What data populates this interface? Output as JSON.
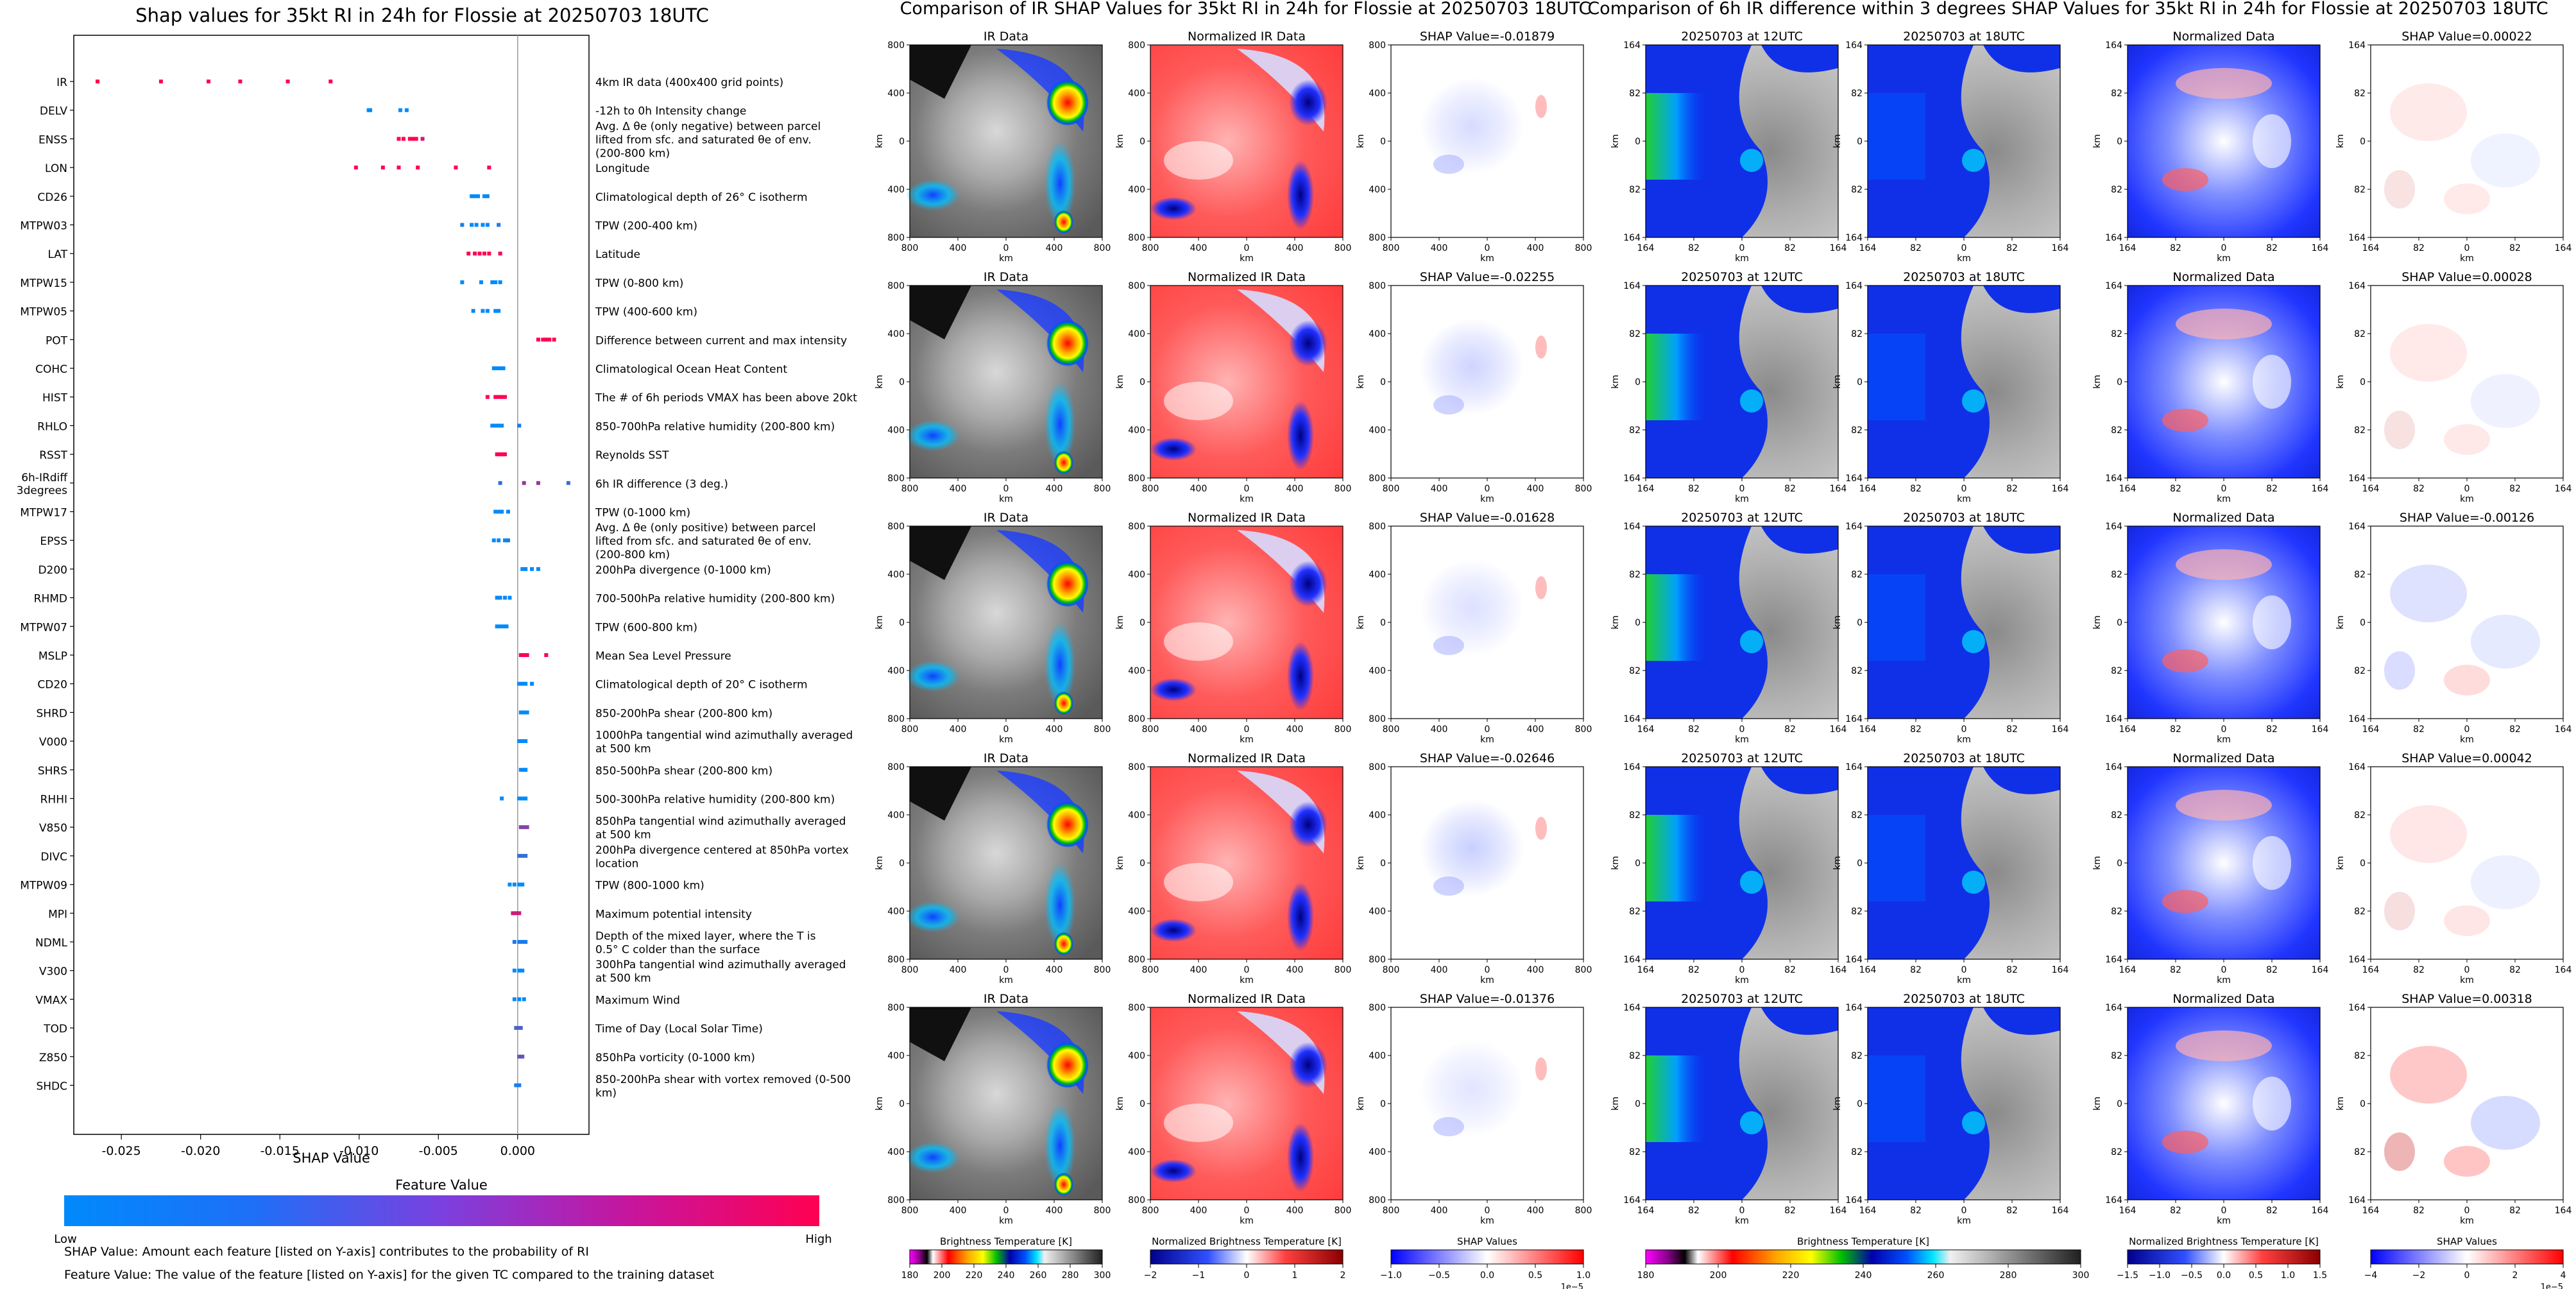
{
  "colors": {
    "low": "#008afb",
    "high": "#ff0052",
    "axis": "#000000",
    "zero_line": "#999999"
  },
  "beeswarm": {
    "title": "Shap values for 35kt RI in 24h for Flossie at 20250703 18UTC",
    "xlabel": "SHAP Value",
    "xlim": [
      -0.028,
      0.0045
    ],
    "xticks": [
      "-0.025",
      "-0.020",
      "-0.015",
      "-0.010",
      "-0.005",
      "0.000"
    ],
    "xtick_values": [
      -0.025,
      -0.02,
      -0.015,
      -0.01,
      -0.005,
      0.0
    ],
    "features": [
      {
        "name": "IR",
        "desc": "4km IR data (400x400 grid points)",
        "pts": [
          [
            -0.0265,
            1
          ],
          [
            -0.0225,
            1
          ],
          [
            -0.0195,
            1
          ],
          [
            -0.0175,
            1
          ],
          [
            -0.0145,
            1
          ],
          [
            -0.0118,
            1
          ]
        ]
      },
      {
        "name": "DELV",
        "desc": "-12h to 0h Intensity change",
        "pts": [
          [
            -0.0094,
            0
          ],
          [
            -0.0093,
            0
          ],
          [
            -0.0074,
            0
          ],
          [
            -0.007,
            0
          ]
        ]
      },
      {
        "name": "ENSS",
        "desc": "Avg. Δ θe (only negative) between parcel lifted from sfc. and saturated θe of env. (200-800 km)",
        "pts": [
          [
            -0.0075,
            1
          ],
          [
            -0.0072,
            1
          ],
          [
            -0.0068,
            1
          ],
          [
            -0.0066,
            1
          ],
          [
            -0.0064,
            1
          ],
          [
            -0.006,
            0.8
          ]
        ]
      },
      {
        "name": "LON",
        "desc": "Longitude",
        "pts": [
          [
            -0.0102,
            1
          ],
          [
            -0.0085,
            1
          ],
          [
            -0.0075,
            1
          ],
          [
            -0.0063,
            1
          ],
          [
            -0.0039,
            1
          ],
          [
            -0.0018,
            1
          ]
        ]
      },
      {
        "name": "CD26",
        "desc": "Climatological depth of 26° C isotherm",
        "pts": [
          [
            -0.0029,
            0
          ],
          [
            -0.0027,
            0
          ],
          [
            -0.0025,
            0
          ],
          [
            -0.0021,
            0
          ],
          [
            -0.0019,
            0
          ]
        ]
      },
      {
        "name": "MTPW03",
        "desc": "TPW (200-400 km)",
        "pts": [
          [
            -0.0035,
            0.1
          ],
          [
            -0.0029,
            0
          ],
          [
            -0.0026,
            0
          ],
          [
            -0.0022,
            0
          ],
          [
            -0.0019,
            0
          ],
          [
            -0.0012,
            0.1
          ]
        ]
      },
      {
        "name": "LAT",
        "desc": "Latitude",
        "pts": [
          [
            -0.0031,
            1
          ],
          [
            -0.0027,
            1
          ],
          [
            -0.0024,
            1
          ],
          [
            -0.0021,
            1
          ],
          [
            -0.0018,
            1
          ],
          [
            -0.0011,
            1
          ]
        ]
      },
      {
        "name": "MTPW15",
        "desc": "TPW (0-800 km)",
        "pts": [
          [
            -0.0035,
            0
          ],
          [
            -0.0023,
            0
          ],
          [
            -0.0016,
            0
          ],
          [
            -0.0014,
            0
          ],
          [
            -0.0011,
            0
          ]
        ]
      },
      {
        "name": "MTPW05",
        "desc": "TPW (400-600 km)",
        "pts": [
          [
            -0.0028,
            0.05
          ],
          [
            -0.0022,
            0
          ],
          [
            -0.0019,
            0
          ],
          [
            -0.0014,
            0
          ],
          [
            -0.0012,
            0
          ]
        ]
      },
      {
        "name": "POT",
        "desc": "Difference between current and max intensity",
        "pts": [
          [
            0.0013,
            1
          ],
          [
            0.0016,
            1
          ],
          [
            0.0018,
            1
          ],
          [
            0.002,
            1
          ],
          [
            0.0023,
            1
          ]
        ]
      },
      {
        "name": "COHC",
        "desc": "Climatological Ocean Heat Content",
        "pts": [
          [
            -0.0015,
            0
          ],
          [
            -0.0013,
            0
          ],
          [
            -0.0011,
            0
          ],
          [
            -0.0009,
            0
          ]
        ]
      },
      {
        "name": "HIST",
        "desc": "The # of 6h periods VMAX has been above 20kt",
        "pts": [
          [
            -0.0019,
            1
          ],
          [
            -0.0014,
            1
          ],
          [
            -0.0012,
            1
          ],
          [
            -0.001,
            1
          ],
          [
            -0.0008,
            1
          ]
        ]
      },
      {
        "name": "RHLO",
        "desc": "850-700hPa relative humidity (200-800 km)",
        "pts": [
          [
            -0.0016,
            0
          ],
          [
            -0.0014,
            0
          ],
          [
            -0.0012,
            0
          ],
          [
            -0.001,
            0
          ],
          [
            0.0001,
            0.1
          ]
        ]
      },
      {
        "name": "RSST",
        "desc": "Reynolds SST",
        "pts": [
          [
            -0.0013,
            1
          ],
          [
            -0.0011,
            1
          ],
          [
            -0.001,
            1
          ],
          [
            -0.0009,
            1
          ],
          [
            -0.0008,
            1
          ]
        ]
      },
      {
        "name": "6h-IRdiff\n3degrees",
        "desc": "6h IR difference (3 deg.)",
        "pts": [
          [
            -0.0011,
            0.2
          ],
          [
            0.0004,
            0.6
          ],
          [
            0.0013,
            0.6
          ],
          [
            0.0032,
            0.2
          ]
        ]
      },
      {
        "name": "MTPW17",
        "desc": "TPW (0-1000 km)",
        "pts": [
          [
            -0.0014,
            0
          ],
          [
            -0.0012,
            0
          ],
          [
            -0.001,
            0
          ],
          [
            -0.0006,
            0
          ]
        ]
      },
      {
        "name": "EPSS",
        "desc": "Avg. Δ θe (only positive) between parcel lifted from sfc. and saturated θe of env. (200-800 km)",
        "pts": [
          [
            -0.0015,
            0
          ],
          [
            -0.0012,
            0
          ],
          [
            -0.0008,
            0
          ],
          [
            -0.0006,
            0.1
          ]
        ]
      },
      {
        "name": "D200",
        "desc": "200hPa divergence (0-1000 km)",
        "pts": [
          [
            0.0003,
            0
          ],
          [
            0.0005,
            0
          ],
          [
            0.0009,
            0
          ],
          [
            0.0013,
            0
          ]
        ]
      },
      {
        "name": "RHMD",
        "desc": "700-500hPa relative humidity (200-800 km)",
        "pts": [
          [
            -0.0013,
            0
          ],
          [
            -0.0011,
            0
          ],
          [
            -0.0008,
            0
          ],
          [
            -0.0005,
            0
          ]
        ]
      },
      {
        "name": "MTPW07",
        "desc": "TPW (600-800 km)",
        "pts": [
          [
            -0.0013,
            0
          ],
          [
            -0.0011,
            0
          ],
          [
            -0.0009,
            0
          ],
          [
            -0.0007,
            0
          ]
        ]
      },
      {
        "name": "MSLP",
        "desc": "Mean Sea Level Pressure",
        "pts": [
          [
            0.0002,
            1
          ],
          [
            0.0004,
            1
          ],
          [
            0.0006,
            1
          ],
          [
            0.0018,
            1
          ]
        ]
      },
      {
        "name": "CD20",
        "desc": "Climatological depth of 20° C isotherm",
        "pts": [
          [
            0.0001,
            0
          ],
          [
            0.0003,
            0
          ],
          [
            0.0005,
            0
          ],
          [
            0.0009,
            0
          ]
        ]
      },
      {
        "name": "SHRD",
        "desc": "850-200hPa shear (200-800 km)",
        "pts": [
          [
            0.0002,
            0
          ],
          [
            0.0004,
            0
          ],
          [
            0.0006,
            0
          ]
        ]
      },
      {
        "name": "V000",
        "desc": "1000hPa tangential wind azimuthally averaged at 500 km",
        "pts": [
          [
            0.0001,
            0
          ],
          [
            0.0003,
            0
          ],
          [
            0.0005,
            0
          ]
        ]
      },
      {
        "name": "SHRS",
        "desc": "850-500hPa shear (200-800 km)",
        "pts": [
          [
            0.0002,
            0
          ],
          [
            0.0004,
            0
          ],
          [
            0.0005,
            0
          ]
        ]
      },
      {
        "name": "RHHI",
        "desc": "500-300hPa relative humidity (200-800 km)",
        "pts": [
          [
            -0.001,
            0
          ],
          [
            0.0001,
            0
          ],
          [
            0.0003,
            0
          ],
          [
            0.0005,
            0
          ]
        ]
      },
      {
        "name": "V850",
        "desc": "850hPa tangential wind azimuthally averaged at 500 km",
        "pts": [
          [
            0.0002,
            0.5
          ],
          [
            0.0004,
            0.5
          ],
          [
            0.0006,
            0.5
          ]
        ]
      },
      {
        "name": "DIVC",
        "desc": "200hPa divergence centered at 850hPa vortex location",
        "pts": [
          [
            0.0001,
            0.2
          ],
          [
            0.0003,
            0.2
          ],
          [
            0.0005,
            0.2
          ]
        ]
      },
      {
        "name": "MTPW09",
        "desc": "TPW (800-1000 km)",
        "pts": [
          [
            -0.0005,
            0
          ],
          [
            -0.0002,
            0
          ],
          [
            0.0001,
            0
          ],
          [
            0.0003,
            0
          ]
        ]
      },
      {
        "name": "MPI",
        "desc": "Maximum potential intensity",
        "pts": [
          [
            -0.0003,
            0.8
          ],
          [
            -0.0001,
            0.8
          ],
          [
            0.0001,
            0.8
          ]
        ]
      },
      {
        "name": "NDML",
        "desc": "Depth of the mixed layer, where the T is 0.5° C colder than the surface",
        "pts": [
          [
            -0.0002,
            0.1
          ],
          [
            0.0001,
            0.1
          ],
          [
            0.0003,
            0.1
          ],
          [
            0.0005,
            0.1
          ]
        ]
      },
      {
        "name": "V300",
        "desc": "300hPa tangential wind azimuthally averaged at 500 km",
        "pts": [
          [
            -0.0002,
            0
          ],
          [
            0.0001,
            0
          ],
          [
            0.0003,
            0
          ]
        ]
      },
      {
        "name": "VMAX",
        "desc": "Maximum Wind",
        "pts": [
          [
            -0.0002,
            0
          ],
          [
            0.0001,
            0
          ],
          [
            0.0004,
            0
          ]
        ]
      },
      {
        "name": "TOD",
        "desc": "Time of Day (Local Solar Time)",
        "pts": [
          [
            -0.0001,
            0.3
          ],
          [
            0.0001,
            0.3
          ],
          [
            0.0002,
            0.3
          ]
        ]
      },
      {
        "name": "Z850",
        "desc": "850hPa vorticity (0-1000 km)",
        "pts": [
          [
            0.0001,
            0.4
          ],
          [
            0.0003,
            0.4
          ]
        ]
      },
      {
        "name": "SHDC",
        "desc": "850-200hPa shear with vortex removed (0-500 km)",
        "pts": [
          [
            -0.0001,
            0.1
          ],
          [
            0.0001,
            0.1
          ]
        ]
      }
    ],
    "colorbar_title": "Feature Value",
    "colorbar_low": "Low",
    "colorbar_high": "High",
    "note1": "SHAP Value: Amount each feature [listed on Y-axis] contributes to the probability of RI",
    "note2": "Feature Value: The value of the feature [listed on Y-axis] for the given TC compared to the training dataset"
  },
  "panel_set1": {
    "title": "Comparison of IR SHAP Values for 35kt RI in 24h for Flossie at 20250703 18UTC",
    "col_titles": [
      "IR Data",
      "Normalized IR Data"
    ],
    "shap_titles": [
      "SHAP Value=-0.01879",
      "SHAP Value=-0.02255",
      "SHAP Value=-0.01628",
      "SHAP Value=-0.02646",
      "SHAP Value=-0.01376"
    ],
    "xticks": [
      "800",
      "400",
      "0",
      "400",
      "800"
    ],
    "yticks": [
      "800",
      "400",
      "0",
      "400",
      "800"
    ],
    "axis_label": "km",
    "colorbars": [
      {
        "label": "Brightness Temperature [K]",
        "ticks": [
          "180",
          "200",
          "220",
          "240",
          "260",
          "280",
          "300"
        ],
        "offset": ""
      },
      {
        "label": "Normalized Brightness Temperature [K]",
        "ticks": [
          "−2",
          "−1",
          "0",
          "1",
          "2"
        ],
        "offset": ""
      },
      {
        "label": "SHAP Values",
        "ticks": [
          "−1.0",
          "−0.5",
          "0.0",
          "0.5",
          "1.0"
        ],
        "offset": "1e−5"
      }
    ]
  },
  "panel_set2": {
    "title": "Comparison of 6h IR difference within 3 degrees SHAP Values for 35kt RI in 24h for Flossie at 20250703 18UTC",
    "col_titles": [
      "20250703 at 12UTC",
      "20250703 at 18UTC",
      "Normalized Data"
    ],
    "shap_titles": [
      "SHAP Value=0.00022",
      "SHAP Value=0.00028",
      "SHAP Value=-0.00126",
      "SHAP Value=0.00042",
      "SHAP Value=0.00318"
    ],
    "xticks": [
      "164",
      "82",
      "0",
      "82",
      "164"
    ],
    "yticks": [
      "164",
      "82",
      "0",
      "82",
      "164"
    ],
    "axis_label": "km",
    "colorbars": [
      {
        "label": "Brightness Temperature [K]",
        "ticks": [
          "180",
          "200",
          "220",
          "240",
          "260",
          "280",
          "300"
        ],
        "offset": ""
      },
      {
        "label": "Normalized Brightness Temperature [K]",
        "ticks": [
          "−1.5",
          "−1.0",
          "−0.5",
          "0.0",
          "0.5",
          "1.0",
          "1.5"
        ],
        "offset": ""
      },
      {
        "label": "SHAP Values",
        "ticks": [
          "−4",
          "−2",
          "0",
          "2",
          "4"
        ],
        "offset": "1e−5"
      }
    ]
  },
  "chart_data": [
    {
      "type": "scatter",
      "title": "Shap values for 35kt RI in 24h for Flossie at 20250703 18UTC",
      "xlabel": "SHAP Value",
      "ylabel": "",
      "xlim": [
        -0.028,
        0.0045
      ],
      "note": "Beeswarm of per-feature SHAP values; colour encodes feature value (0=Low blue, 1=High red). Points are listed in beeswarm.features."
    },
    {
      "type": "heatmap",
      "title": "Comparison of IR SHAP Values for 35kt RI in 24h for Flossie at 20250703 18UTC",
      "rows": 5,
      "columns": [
        "IR Data",
        "Normalized IR Data",
        "SHAP Value"
      ],
      "shap_values": [
        -0.01879,
        -0.02255,
        -0.01628,
        -0.02646,
        -0.01376
      ],
      "xlim": [
        -800,
        800
      ],
      "ylim": [
        -800,
        800
      ]
    },
    {
      "type": "heatmap",
      "title": "Comparison of 6h IR difference within 3 degrees SHAP Values for 35kt RI in 24h for Flossie at 20250703 18UTC",
      "rows": 5,
      "columns": [
        "20250703 at 12UTC",
        "20250703 at 18UTC",
        "Normalized Data",
        "SHAP Value"
      ],
      "shap_values": [
        0.00022,
        0.00028,
        -0.00126,
        0.00042,
        0.00318
      ],
      "xlim": [
        -164,
        164
      ],
      "ylim": [
        -164,
        164
      ]
    }
  ]
}
